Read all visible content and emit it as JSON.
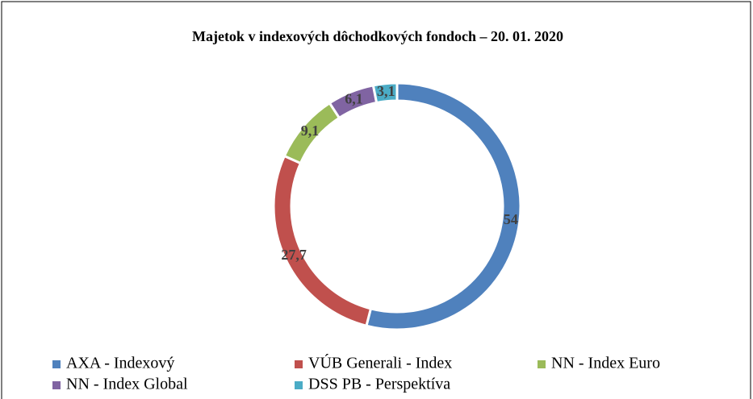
{
  "chart_data": {
    "type": "donut",
    "title": "Majetok v indexových dôchodkových fondoch – 20. 01. 2020",
    "categories": [
      "AXA - Indexový",
      "VÚB Generali - Index",
      "NN - Index Euro",
      "NN - Index Global",
      "DSS PB - Perspektíva"
    ],
    "values": [
      54,
      27.7,
      9.1,
      6.1,
      3.1
    ],
    "value_labels": [
      "54",
      "27,7",
      "9,1",
      "6,1",
      "3,1"
    ],
    "colors": [
      "#4f81bd",
      "#c0504d",
      "#9bbb59",
      "#8064a2",
      "#4bacc6"
    ],
    "legend": "bottom"
  }
}
